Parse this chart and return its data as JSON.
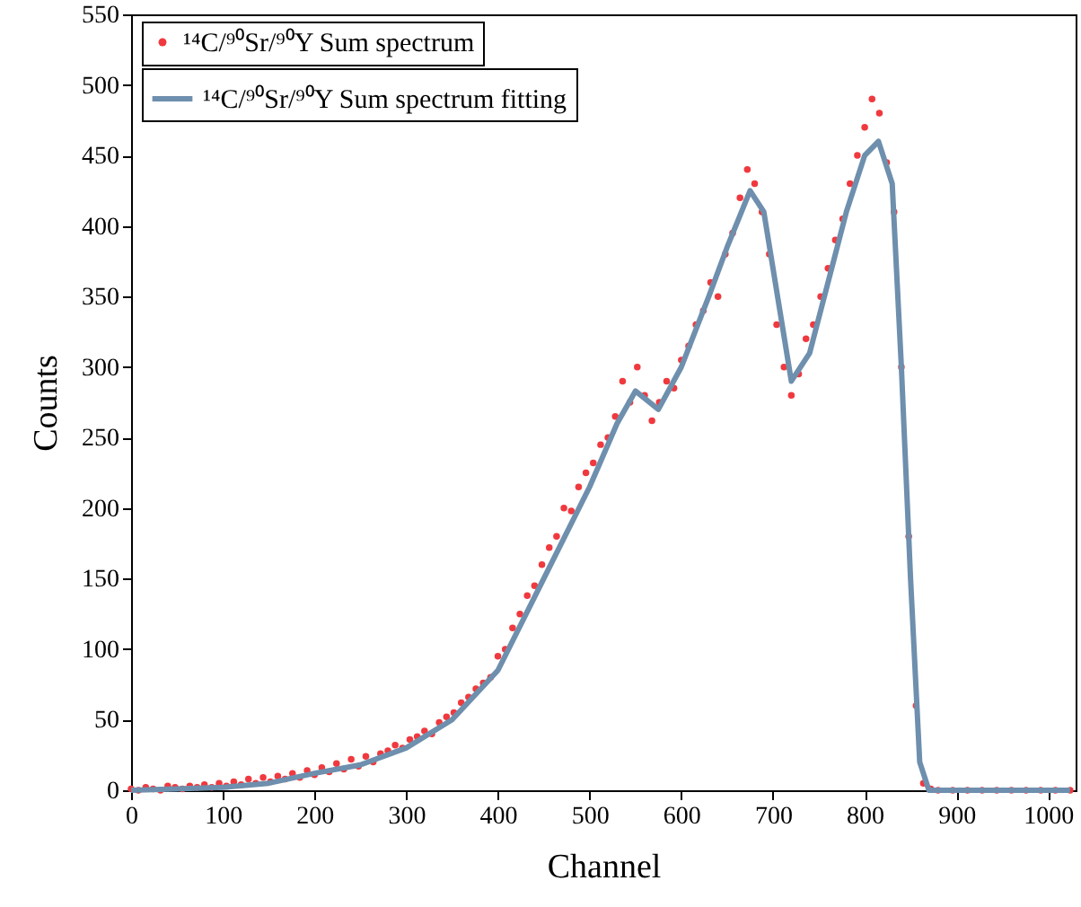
{
  "chart_data": {
    "type": "scatter",
    "xlabel": "Channel",
    "ylabel": "Counts",
    "xlim": [
      0,
      1030
    ],
    "ylim": [
      0,
      550
    ],
    "xticks": [
      0,
      100,
      200,
      300,
      400,
      500,
      600,
      700,
      800,
      900,
      1000
    ],
    "yticks": [
      0,
      50,
      100,
      150,
      200,
      250,
      300,
      350,
      400,
      450,
      500,
      550
    ],
    "legend": "top left",
    "series": [
      {
        "name": "¹⁴C/⁹⁰Sr/⁹⁰Y Sum spectrum",
        "marker": "circle",
        "color": "#f0393e",
        "x": [
          0,
          8,
          16,
          24,
          32,
          40,
          48,
          56,
          64,
          72,
          80,
          88,
          96,
          104,
          112,
          120,
          128,
          136,
          144,
          152,
          160,
          168,
          176,
          184,
          192,
          200,
          208,
          216,
          224,
          232,
          240,
          248,
          256,
          264,
          272,
          280,
          288,
          296,
          304,
          312,
          320,
          328,
          336,
          344,
          352,
          360,
          368,
          376,
          384,
          392,
          400,
          408,
          416,
          424,
          432,
          440,
          448,
          456,
          464,
          472,
          480,
          488,
          496,
          504,
          512,
          520,
          528,
          536,
          544,
          552,
          560,
          568,
          576,
          584,
          592,
          600,
          608,
          616,
          624,
          632,
          640,
          648,
          656,
          664,
          672,
          680,
          688,
          696,
          704,
          712,
          720,
          728,
          736,
          744,
          752,
          760,
          768,
          776,
          784,
          792,
          800,
          808,
          816,
          824,
          832,
          840,
          848,
          856,
          864,
          872,
          880,
          896,
          912,
          928,
          944,
          960,
          976,
          992,
          1008,
          1024
        ],
        "values": [
          1,
          0,
          2,
          1,
          0,
          3,
          2,
          1,
          3,
          2,
          4,
          2,
          5,
          3,
          6,
          4,
          8,
          5,
          9,
          6,
          10,
          8,
          12,
          9,
          14,
          11,
          16,
          13,
          19,
          15,
          22,
          17,
          24,
          20,
          26,
          28,
          32,
          30,
          36,
          38,
          42,
          40,
          48,
          52,
          55,
          62,
          66,
          72,
          76,
          80,
          95,
          100,
          115,
          125,
          138,
          145,
          160,
          172,
          180,
          200,
          198,
          215,
          225,
          232,
          245,
          250,
          265,
          290,
          275,
          300,
          280,
          262,
          275,
          290,
          285,
          305,
          315,
          330,
          340,
          360,
          350,
          380,
          395,
          420,
          440,
          430,
          410,
          380,
          330,
          300,
          280,
          295,
          320,
          330,
          350,
          370,
          390,
          405,
          430,
          450,
          470,
          490,
          480,
          445,
          410,
          300,
          180,
          60,
          5,
          1,
          0,
          0,
          0,
          0,
          0,
          0,
          0,
          0,
          0,
          0
        ]
      },
      {
        "name": "¹⁴C/⁹⁰Sr/⁹⁰Y Sum spectrum fitting",
        "type": "line",
        "line_style": "solid",
        "color": "#6e8fad",
        "x": [
          0,
          50,
          100,
          150,
          200,
          250,
          300,
          350,
          400,
          450,
          500,
          530,
          550,
          575,
          600,
          630,
          650,
          675,
          690,
          705,
          720,
          740,
          760,
          780,
          800,
          815,
          830,
          840,
          850,
          860,
          870,
          950,
          1024
        ],
        "values": [
          0,
          1,
          2,
          5,
          12,
          18,
          30,
          50,
          85,
          150,
          215,
          260,
          283,
          270,
          300,
          350,
          385,
          425,
          410,
          350,
          290,
          310,
          360,
          410,
          450,
          460,
          430,
          300,
          150,
          20,
          0,
          0,
          0
        ]
      }
    ]
  }
}
